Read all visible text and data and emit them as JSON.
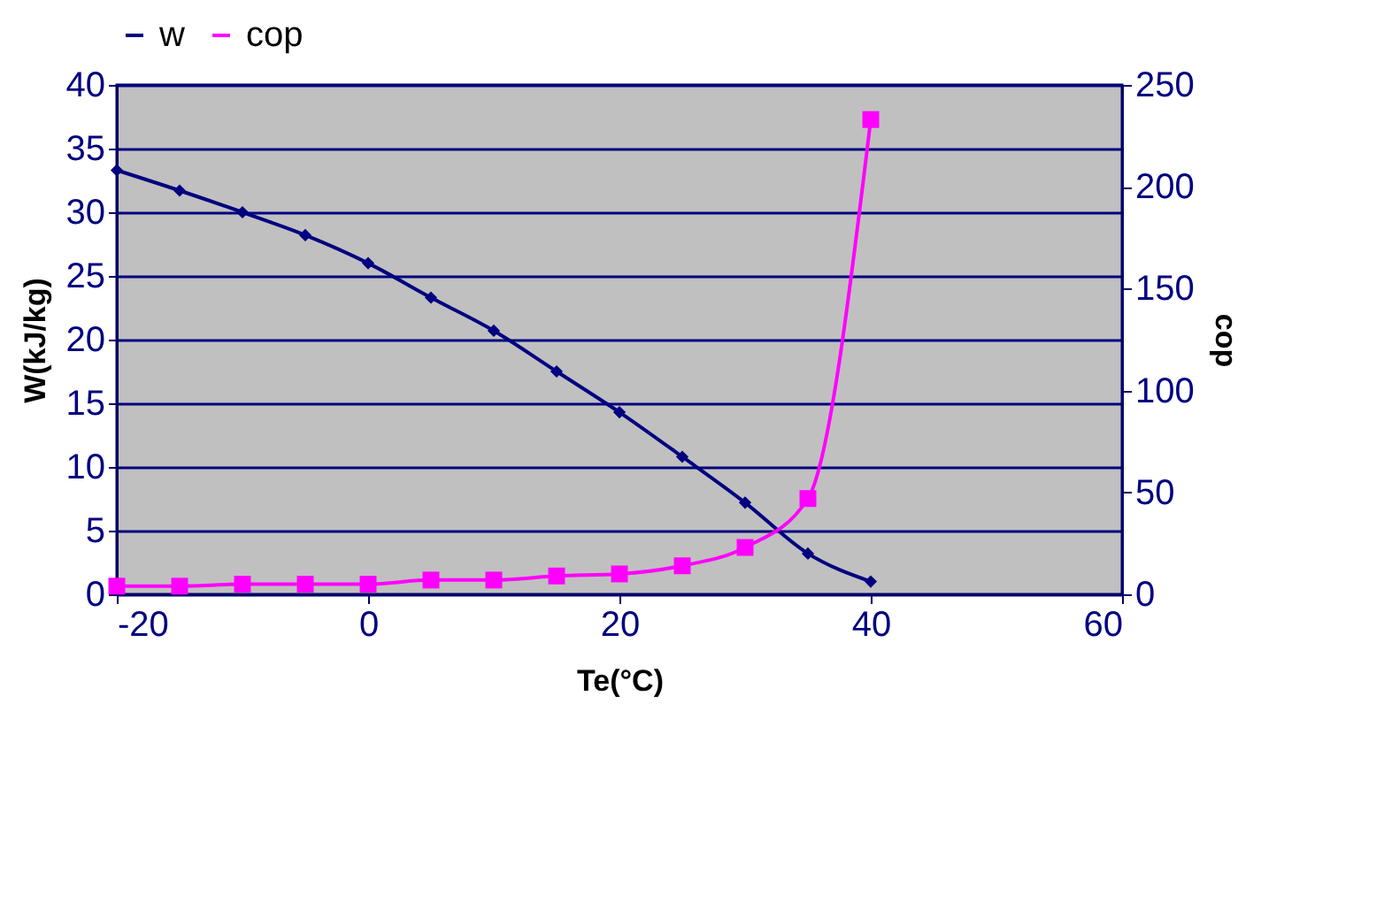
{
  "chart_data": {
    "type": "line",
    "xlabel": "Te(°C)",
    "ylabel": "W(kJ/kg)",
    "y2label": "cop",
    "x": [
      -20,
      -15,
      -10,
      -5,
      0,
      5,
      10,
      15,
      20,
      25,
      30,
      35,
      40
    ],
    "series": [
      {
        "name": "w",
        "color": "#000080",
        "marker": "diamond",
        "values": [
          33.3,
          31.7,
          30,
          28.2,
          26,
          23.3,
          20.7,
          17.5,
          14.3,
          10.8,
          7.2,
          3.2,
          1.0
        ]
      },
      {
        "name": "cop",
        "color": "#ff00ff",
        "marker": "square",
        "axis": "y2",
        "values": [
          4,
          4,
          5,
          5,
          5,
          7,
          7,
          9,
          10,
          14,
          23,
          47,
          233
        ]
      }
    ],
    "xlim": [
      -20,
      60
    ],
    "xticks": [
      -20,
      0,
      20,
      40,
      60
    ],
    "ylim": [
      0,
      40
    ],
    "yticks": [
      0,
      5,
      10,
      15,
      20,
      25,
      30,
      35,
      40
    ],
    "y2lim": [
      0,
      250
    ],
    "y2ticks": [
      0,
      50,
      100,
      150,
      200,
      250
    ],
    "grid": "y",
    "legend": "top",
    "line_style": "solid"
  }
}
